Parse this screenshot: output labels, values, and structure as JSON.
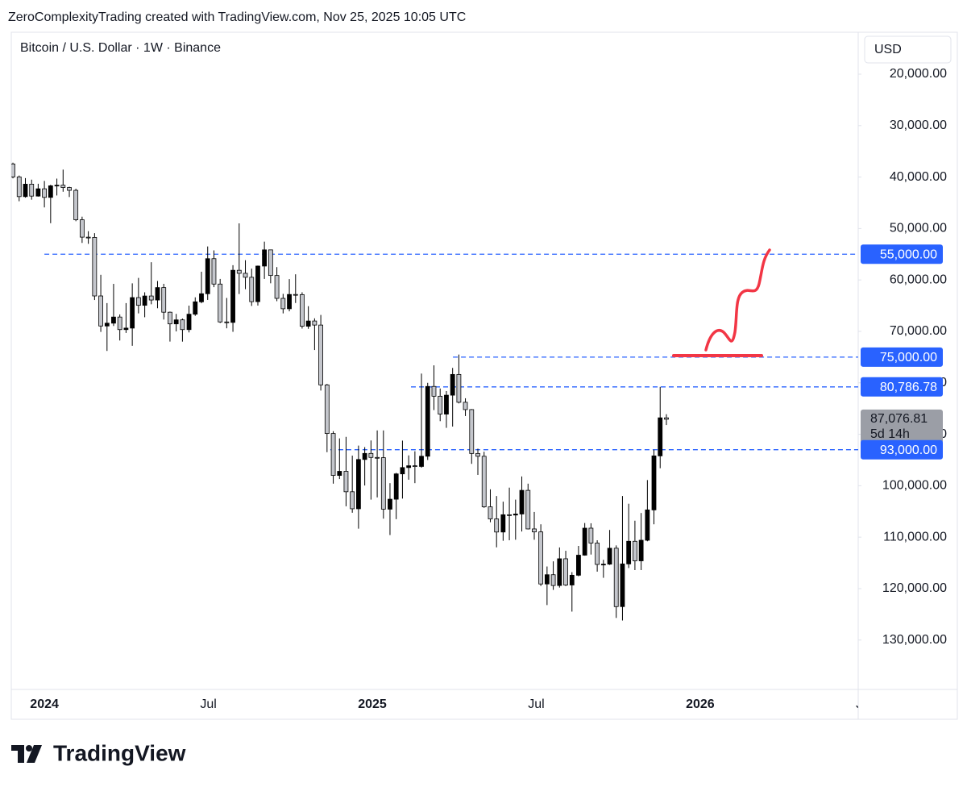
{
  "header": "ZeroComplexityTrading created with TradingView.com, Nov 25, 2025 10:05 UTC",
  "brand": "TradingView",
  "chart_data": {
    "type": "candlestick",
    "title": "Bitcoin / U.S. Dollar · 1W · Binance",
    "currency": "USD",
    "inverted": true,
    "up_color": "#c4c6cc",
    "down_color": "#000000",
    "wick_color": "#000000",
    "xlim": [
      2023.899,
      2026.482
    ],
    "xticks": [
      2024,
      {
        "value": 2024.5,
        "label": "Jul"
      },
      2025,
      {
        "value": 2025.5,
        "label": "Jul"
      },
      2026,
      {
        "value": 2026.5,
        "label": "Jul"
      }
    ],
    "ylim": [
      11850,
      139600
    ],
    "yticks": [
      {
        "value": 20000,
        "label": "20,000.00"
      },
      {
        "value": 30000,
        "label": "30,000.00"
      },
      {
        "value": 40000,
        "label": "40,000.00"
      },
      {
        "value": 50000,
        "label": "50,000.00"
      },
      {
        "value": 60000,
        "label": "60,000.00"
      },
      {
        "value": 70000,
        "label": "70,000.00"
      },
      {
        "value": 80000,
        "label": "80,000.00"
      },
      {
        "value": 90000,
        "label": "90,000.00"
      },
      {
        "value": 100000,
        "label": "100,000.00"
      },
      {
        "value": 110000,
        "label": "110,000.00"
      },
      {
        "value": 120000,
        "label": "120,000.00"
      },
      {
        "value": 130000,
        "label": "130,000.00"
      }
    ],
    "x": [
      2023.904,
      2023.923,
      2023.942,
      2023.961,
      2023.981,
      2024.0,
      2024.019,
      2024.038,
      2024.057,
      2024.076,
      2024.096,
      2024.115,
      2024.134,
      2024.153,
      2024.172,
      2024.191,
      2024.211,
      2024.23,
      2024.249,
      2024.268,
      2024.287,
      2024.306,
      2024.326,
      2024.345,
      2024.364,
      2024.383,
      2024.402,
      2024.421,
      2024.441,
      2024.46,
      2024.479,
      2024.498,
      2024.517,
      2024.536,
      2024.556,
      2024.575,
      2024.594,
      2024.613,
      2024.632,
      2024.651,
      2024.671,
      2024.69,
      2024.709,
      2024.728,
      2024.747,
      2024.766,
      2024.786,
      2024.805,
      2024.824,
      2024.843,
      2024.862,
      2024.881,
      2024.9,
      2024.92,
      2024.939,
      2024.958,
      2024.977,
      2024.996,
      2025.015,
      2025.034,
      2025.054,
      2025.073,
      2025.092,
      2025.111,
      2025.13,
      2025.15,
      2025.169,
      2025.188,
      2025.207,
      2025.226,
      2025.245,
      2025.264,
      2025.284,
      2025.303,
      2025.322,
      2025.341,
      2025.36,
      2025.379,
      2025.399,
      2025.418,
      2025.437,
      2025.456,
      2025.475,
      2025.494,
      2025.514,
      2025.533,
      2025.552,
      2025.571,
      2025.59,
      2025.609,
      2025.629,
      2025.648,
      2025.667,
      2025.686,
      2025.705,
      2025.724,
      2025.744,
      2025.763,
      2025.782,
      2025.801,
      2025.82,
      2025.839,
      2025.859,
      2025.878,
      2025.897
    ],
    "open": [
      37450,
      39970,
      43800,
      41380,
      43700,
      42280,
      43950,
      41700,
      41580,
      42030,
      42580,
      48300,
      51680,
      51730,
      63110,
      68950,
      68400,
      67210,
      69650,
      69360,
      63430,
      64930,
      63120,
      63900,
      61480,
      66270,
      68540,
      67760,
      69650,
      66660,
      64250,
      62680,
      55860,
      60800,
      68160,
      68250,
      58120,
      58710,
      59480,
      64220,
      57300,
      54150,
      59130,
      63580,
      65600,
      62820,
      62850,
      69000,
      67980,
      68770,
      80400,
      89850,
      98000,
      97200,
      101170,
      104480,
      94900,
      93720,
      94500,
      94550,
      104560,
      102620,
      97700,
      96470,
      96120,
      96250,
      94270,
      80700,
      82600,
      86080,
      82400,
      78370,
      83780,
      85200,
      93730,
      94280,
      104100,
      106450,
      109000,
      105640,
      105700,
      105500,
      100900,
      108400,
      108980,
      119100,
      117300,
      119400,
      114200,
      119300,
      117400,
      113500,
      108250,
      111150,
      115300,
      115250,
      112150,
      123500,
      115200,
      110800,
      114600,
      110600,
      104700,
      94200,
      86800
    ],
    "high": [
      40250,
      44700,
      44000,
      44400,
      43800,
      45900,
      48970,
      43580,
      42850,
      43880,
      48580,
      52800,
      52980,
      63900,
      70100,
      73800,
      68950,
      71770,
      70300,
      72800,
      66500,
      67250,
      64730,
      65500,
      67700,
      71980,
      70000,
      71990,
      70200,
      66980,
      64530,
      63880,
      61400,
      68370,
      69400,
      70080,
      62740,
      61800,
      65050,
      64980,
      59800,
      60650,
      64130,
      66500,
      66100,
      64480,
      69450,
      69500,
      73620,
      81500,
      93480,
      99600,
      98700,
      104000,
      105250,
      108350,
      99960,
      102700,
      102270,
      106400,
      109590,
      106500,
      102500,
      98830,
      99500,
      96500,
      95000,
      85300,
      87450,
      88750,
      88500,
      84000,
      86450,
      95750,
      97900,
      104300,
      107100,
      111980,
      110700,
      110600,
      110500,
      108900,
      108500,
      110500,
      119500,
      123200,
      120250,
      119800,
      119500,
      124470,
      117600,
      113600,
      113380,
      116700,
      117900,
      115400,
      125700,
      126200,
      116000,
      116400,
      116400,
      110800,
      107500,
      96600,
      88200
    ],
    "low": [
      37200,
      39700,
      40200,
      40500,
      41300,
      40750,
      41500,
      40300,
      38550,
      41880,
      42260,
      47700,
      50520,
      50900,
      59000,
      64500,
      60760,
      66700,
      64500,
      60660,
      59600,
      62400,
      56550,
      60200,
      60750,
      66150,
      66600,
      67500,
      64990,
      63380,
      58400,
      53490,
      54250,
      59800,
      63500,
      57130,
      49000,
      56160,
      57800,
      57200,
      52550,
      54100,
      57500,
      62700,
      59830,
      58900,
      62400,
      65100,
      67460,
      66800,
      80200,
      89400,
      90800,
      90500,
      94150,
      92200,
      92500,
      91200,
      89250,
      89250,
      99500,
      97500,
      91230,
      94100,
      93300,
      78200,
      80000,
      76600,
      81100,
      81600,
      77100,
      74500,
      83000,
      85100,
      92800,
      93400,
      100700,
      102000,
      103100,
      100370,
      102700,
      98200,
      99600,
      105100,
      107500,
      115700,
      114700,
      112000,
      112650,
      116800,
      111700,
      107250,
      107300,
      110600,
      114400,
      108600,
      111600,
      102000,
      103500,
      106800,
      105300,
      98900,
      93000,
      80787,
      86100
    ],
    "close": [
      39970,
      43800,
      41380,
      43700,
      42280,
      43950,
      41700,
      41580,
      42030,
      42580,
      48300,
      51680,
      51730,
      63110,
      68950,
      68400,
      67210,
      69650,
      69360,
      63430,
      64930,
      63120,
      63900,
      61480,
      66270,
      68540,
      67760,
      69650,
      66660,
      64250,
      62680,
      55860,
      60800,
      68160,
      68250,
      58120,
      58710,
      59480,
      64220,
      57300,
      54150,
      59130,
      63580,
      65600,
      62820,
      62850,
      69000,
      67980,
      68770,
      80400,
      89850,
      98000,
      97200,
      101170,
      104480,
      94900,
      93720,
      94500,
      94550,
      104560,
      102620,
      97700,
      96470,
      96120,
      96250,
      94270,
      80700,
      82600,
      86080,
      82400,
      78370,
      83780,
      85200,
      93730,
      94280,
      104100,
      106450,
      109000,
      105640,
      105700,
      105500,
      100900,
      108400,
      108980,
      119100,
      117300,
      119400,
      114200,
      119300,
      117400,
      113500,
      108250,
      111150,
      115300,
      115250,
      112150,
      123500,
      115200,
      110800,
      114600,
      110600,
      104700,
      94200,
      86800,
      87077
    ],
    "levels": [
      {
        "value": 55000,
        "label": "55,000.00",
        "x_start": 2024.0
      },
      {
        "value": 75000,
        "label": "75,000.00",
        "x_start": 2025.246
      },
      {
        "value": 80786.78,
        "label": "80,786.78",
        "x_start": 2025.118
      },
      {
        "value": 93000,
        "label": "93,000.00",
        "x_start": 2024.872
      }
    ],
    "level_color": "#2962ff",
    "last_price": {
      "value": 87076.81,
      "label": "87,076.81"
    },
    "countdown": "5d 14h"
  }
}
